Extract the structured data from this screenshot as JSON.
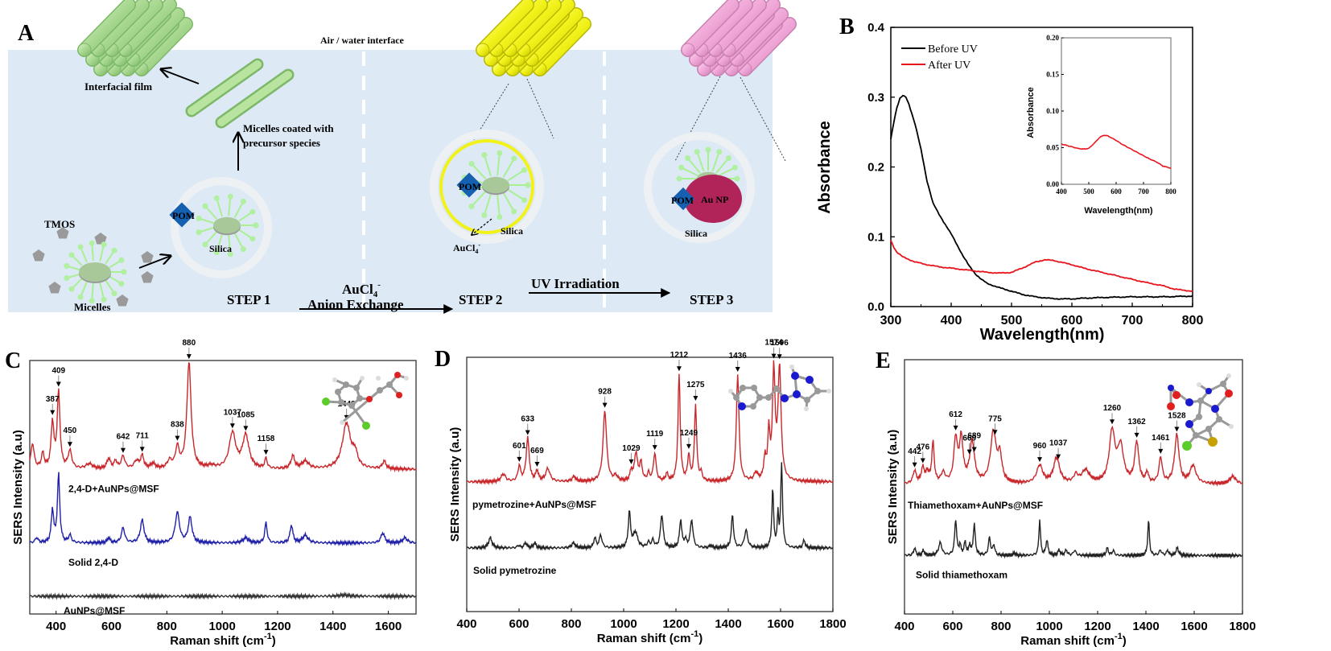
{
  "panel_a": {
    "label": "A",
    "interface_label": "Air / water interface",
    "interfacial_film": "Interfacial film",
    "micelles_coated_1": "Micelles coated with",
    "micelles_coated_2": "precursor species",
    "tmos": "TMOS",
    "micelles": "Micelles",
    "pom": "POM",
    "silica": "Silica",
    "aucl4": "AuCl",
    "au_np": "Au NP",
    "step1": "STEP 1",
    "step2": "STEP 2",
    "step3": "STEP 3",
    "arrow1_top": "AuCl",
    "arrow1_bottom": "Anion Exchange",
    "arrow2_top": "UV Irradiation",
    "colors": {
      "water": "#dde9f5",
      "green_rod": "#a8d890",
      "yellow_rod": "#f2f21a",
      "pink_rod": "#f0a8d8",
      "pom": "#1560b0",
      "au_np": "#b0245a"
    }
  },
  "chart_data": [
    {
      "panel": "B",
      "type": "line",
      "title": "",
      "xlabel": "Wavelength(nm)",
      "ylabel": "Absorbance",
      "xlim": [
        300,
        800
      ],
      "ylim": [
        0.0,
        0.4
      ],
      "xticks": [
        300,
        400,
        500,
        600,
        700,
        800
      ],
      "yticks": [
        "0.0",
        "0.1",
        "0.2",
        "0.3",
        "0.4"
      ],
      "legend_position": "top-left",
      "series": [
        {
          "name": "Before UV",
          "color": "#000000",
          "x": [
            300,
            305,
            310,
            315,
            320,
            325,
            330,
            340,
            350,
            360,
            370,
            380,
            390,
            400,
            410,
            420,
            430,
            440,
            450,
            460,
            480,
            500,
            520,
            540,
            560,
            580,
            600,
            620,
            650,
            700,
            750,
            800
          ],
          "y": [
            0.24,
            0.265,
            0.285,
            0.298,
            0.302,
            0.3,
            0.29,
            0.262,
            0.225,
            0.18,
            0.148,
            0.132,
            0.118,
            0.104,
            0.088,
            0.072,
            0.058,
            0.047,
            0.039,
            0.033,
            0.027,
            0.022,
            0.017,
            0.014,
            0.012,
            0.011,
            0.011,
            0.012,
            0.013,
            0.014,
            0.014,
            0.015
          ]
        },
        {
          "name": "After UV",
          "color": "#e8141c",
          "x": [
            300,
            305,
            310,
            320,
            340,
            360,
            380,
            400,
            420,
            440,
            460,
            480,
            500,
            520,
            540,
            555,
            570,
            600,
            620,
            650,
            680,
            700,
            720,
            750,
            770,
            800
          ],
          "y": [
            0.095,
            0.085,
            0.078,
            0.071,
            0.064,
            0.06,
            0.057,
            0.055,
            0.053,
            0.051,
            0.049,
            0.048,
            0.049,
            0.056,
            0.064,
            0.067,
            0.066,
            0.06,
            0.055,
            0.049,
            0.043,
            0.039,
            0.035,
            0.03,
            0.025,
            0.022
          ]
        }
      ],
      "inset": {
        "xlabel": "Wavelength(nm)",
        "ylabel": "Absorbance",
        "xlim": [
          400,
          800
        ],
        "ylim": [
          0.0,
          0.2
        ],
        "xticks": [
          400,
          500,
          600,
          700,
          800
        ],
        "yticks": [
          "0.00",
          "0.05",
          "0.10",
          "0.15",
          "0.20"
        ],
        "series": [
          {
            "name": "After UV",
            "color": "#e8141c",
            "x": [
              400,
              420,
              440,
              460,
              480,
              500,
              520,
              540,
              555,
              570,
              600,
              620,
              650,
              680,
              700,
              720,
              750,
              770,
              800
            ],
            "y": [
              0.055,
              0.053,
              0.051,
              0.049,
              0.048,
              0.049,
              0.056,
              0.064,
              0.067,
              0.066,
              0.06,
              0.055,
              0.049,
              0.043,
              0.039,
              0.035,
              0.03,
              0.025,
              0.022
            ]
          }
        ]
      }
    },
    {
      "panel": "C",
      "type": "line",
      "xlabel": "Raman shift (cm",
      "xlabel_sup": "-1",
      "xlabel_end": ")",
      "ylabel": "SERS Intensity (a.u)",
      "xlim": [
        305,
        1700
      ],
      "xticks": [
        400,
        600,
        800,
        1000,
        1200,
        1400,
        1600
      ],
      "series": [
        {
          "name": "2,4-D+AuNPs@MSF",
          "color": "#c8282c",
          "baseline": 0.62,
          "peaks": [
            [
              315,
              0.1,
              7
            ],
            [
              352,
              0.06,
              6
            ],
            [
              387,
              0.18,
              6
            ],
            [
              409,
              0.3,
              6
            ],
            [
              450,
              0.07,
              8
            ],
            [
              520,
              0.02,
              15
            ],
            [
              590,
              0.04,
              8
            ],
            [
              615,
              0.03,
              6
            ],
            [
              642,
              0.05,
              8
            ],
            [
              690,
              0.03,
              10
            ],
            [
              711,
              0.05,
              7
            ],
            [
              750,
              0.02,
              10
            ],
            [
              810,
              0.03,
              10
            ],
            [
              838,
              0.08,
              8
            ],
            [
              880,
              0.42,
              9
            ],
            [
              960,
              0.01,
              15
            ],
            [
              1037,
              0.14,
              14
            ],
            [
              1085,
              0.13,
              14
            ],
            [
              1158,
              0.04,
              5
            ],
            [
              1255,
              0.05,
              8
            ],
            [
              1300,
              0.03,
              15
            ],
            [
              1449,
              0.18,
              18
            ],
            [
              1480,
              0.05,
              10
            ],
            [
              1585,
              0.03,
              8
            ]
          ]
        },
        {
          "name": "Solid 2,4-D",
          "color": "#2020a8",
          "baseline": 0.33,
          "peaks": [
            [
              330,
              0.02,
              6
            ],
            [
              387,
              0.13,
              5
            ],
            [
              409,
              0.27,
              5
            ],
            [
              450,
              0.03,
              6
            ],
            [
              590,
              0.02,
              6
            ],
            [
              642,
              0.06,
              7
            ],
            [
              711,
              0.09,
              8
            ],
            [
              838,
              0.12,
              9
            ],
            [
              884,
              0.1,
              8
            ],
            [
              1085,
              0.02,
              12
            ],
            [
              1158,
              0.08,
              5
            ],
            [
              1250,
              0.07,
              6
            ],
            [
              1300,
              0.03,
              12
            ],
            [
              1580,
              0.04,
              8
            ],
            [
              1660,
              0.02,
              10
            ]
          ]
        },
        {
          "name": "AuNPs@MSF",
          "color": "#333333",
          "baseline": 0.12,
          "peaks": [
            [
              1440,
              0.005,
              20
            ]
          ]
        }
      ],
      "annotations": [
        387,
        409,
        450,
        642,
        711,
        838,
        880,
        1037,
        1085,
        1158,
        1449
      ]
    },
    {
      "panel": "D",
      "type": "line",
      "xlabel": "Raman shift (cm",
      "xlabel_sup": "-1",
      "xlabel_end": ")",
      "ylabel": "SERS Intensity (a.u)",
      "xlim": [
        400,
        1800
      ],
      "xticks": [
        400,
        600,
        800,
        1000,
        1200,
        1400,
        1600,
        1800
      ],
      "series": [
        {
          "name": "pymetrozine+AuNPs@MSF",
          "color": "#c8282c",
          "baseline": 0.56,
          "peaks": [
            [
              540,
              0.03,
              10
            ],
            [
              601,
              0.06,
              6
            ],
            [
              633,
              0.17,
              7
            ],
            [
              669,
              0.04,
              6
            ],
            [
              710,
              0.05,
              10
            ],
            [
              810,
              0.02,
              8
            ],
            [
              928,
              0.28,
              8
            ],
            [
              970,
              0.02,
              8
            ],
            [
              1029,
              0.04,
              5
            ],
            [
              1047,
              0.11,
              7
            ],
            [
              1066,
              0.07,
              6
            ],
            [
              1095,
              0.03,
              5
            ],
            [
              1119,
              0.11,
              6
            ],
            [
              1165,
              0.03,
              5
            ],
            [
              1212,
              0.42,
              5
            ],
            [
              1249,
              0.1,
              5
            ],
            [
              1275,
              0.3,
              5
            ],
            [
              1296,
              0.03,
              5
            ],
            [
              1436,
              0.42,
              6
            ],
            [
              1506,
              0.03,
              8
            ],
            [
              1540,
              0.08,
              5
            ],
            [
              1555,
              0.18,
              5
            ],
            [
              1574,
              0.42,
              6
            ],
            [
              1596,
              0.44,
              7
            ]
          ]
        },
        {
          "name": "Solid pymetrozine",
          "color": "#222222",
          "baseline": 0.3,
          "peaks": [
            [
              490,
              0.04,
              8
            ],
            [
              598,
              0.01,
              5
            ],
            [
              625,
              0.02,
              6
            ],
            [
              660,
              0.02,
              6
            ],
            [
              808,
              0.02,
              8
            ],
            [
              890,
              0.04,
              5
            ],
            [
              912,
              0.05,
              6
            ],
            [
              1022,
              0.14,
              5
            ],
            [
              1045,
              0.06,
              10
            ],
            [
              1095,
              0.02,
              6
            ],
            [
              1112,
              0.03,
              5
            ],
            [
              1146,
              0.13,
              6
            ],
            [
              1218,
              0.11,
              5
            ],
            [
              1236,
              0.03,
              5
            ],
            [
              1260,
              0.11,
              6
            ],
            [
              1333,
              0.01,
              5
            ],
            [
              1416,
              0.13,
              5
            ],
            [
              1468,
              0.07,
              7
            ],
            [
              1570,
              0.23,
              4
            ],
            [
              1590,
              0.13,
              3
            ],
            [
              1604,
              0.33,
              4
            ],
            [
              1690,
              0.03,
              5
            ]
          ]
        }
      ],
      "annotations": [
        601,
        633,
        669,
        928,
        1029,
        1119,
        1212,
        1249,
        1275,
        1436,
        1574,
        1596
      ]
    },
    {
      "panel": "E",
      "type": "line",
      "xlabel": "Raman shift (cm",
      "xlabel_sup": "-1",
      "xlabel_end": ")",
      "ylabel": "SERS Intensity (a.u)",
      "xlim": [
        400,
        1800
      ],
      "xticks": [
        400,
        600,
        800,
        1000,
        1200,
        1400,
        1600,
        1800
      ],
      "series": [
        {
          "name": "Thiamethoxam+AuNPs@MSF",
          "color": "#c8282c",
          "baseline": 0.56,
          "peaks": [
            [
              442,
              0.05,
              8
            ],
            [
              476,
              0.06,
              8
            ],
            [
              495,
              0.04,
              7
            ],
            [
              518,
              0.16,
              6
            ],
            [
              560,
              0.04,
              10
            ],
            [
              612,
              0.17,
              9
            ],
            [
              635,
              0.17,
              9
            ],
            [
              680,
              0.16,
              12
            ],
            [
              768,
              0.2,
              14
            ],
            [
              795,
              0.1,
              10
            ],
            [
              960,
              0.07,
              15
            ],
            [
              1030,
              0.1,
              15
            ],
            [
              1110,
              0.03,
              10
            ],
            [
              1150,
              0.05,
              20
            ],
            [
              1260,
              0.2,
              14
            ],
            [
              1295,
              0.14,
              15
            ],
            [
              1362,
              0.16,
              10
            ],
            [
              1405,
              0.04,
              6
            ],
            [
              1461,
              0.1,
              8
            ],
            [
              1528,
              0.19,
              11
            ],
            [
              1595,
              0.07,
              15
            ],
            [
              1760,
              0.03,
              15
            ]
          ]
        },
        {
          "name": "Solid thiamethoxam",
          "color": "#222222",
          "baseline": 0.28,
          "peaks": [
            [
              442,
              0.03,
              5
            ],
            [
              478,
              0.02,
              5
            ],
            [
              548,
              0.05,
              8
            ],
            [
              612,
              0.14,
              5
            ],
            [
              630,
              0.04,
              4
            ],
            [
              651,
              0.05,
              5
            ],
            [
              670,
              0.04,
              4
            ],
            [
              689,
              0.12,
              5
            ],
            [
              752,
              0.07,
              5
            ],
            [
              770,
              0.04,
              5
            ],
            [
              855,
              0.01,
              5
            ],
            [
              960,
              0.14,
              4
            ],
            [
              990,
              0.06,
              5
            ],
            [
              1040,
              0.02,
              6
            ],
            [
              1070,
              0.02,
              6
            ],
            [
              1105,
              0.02,
              6
            ],
            [
              1240,
              0.03,
              5
            ],
            [
              1265,
              0.02,
              5
            ],
            [
              1411,
              0.14,
              4
            ],
            [
              1460,
              0.02,
              6
            ],
            [
              1490,
              0.02,
              5
            ],
            [
              1530,
              0.03,
              6
            ]
          ]
        }
      ],
      "annotations": [
        442,
        476,
        612,
        669,
        689,
        775,
        960,
        1037,
        1260,
        1362,
        1461,
        1528
      ]
    }
  ],
  "panel_labels": {
    "b": "B",
    "c": "C",
    "d": "D",
    "e": "E"
  }
}
